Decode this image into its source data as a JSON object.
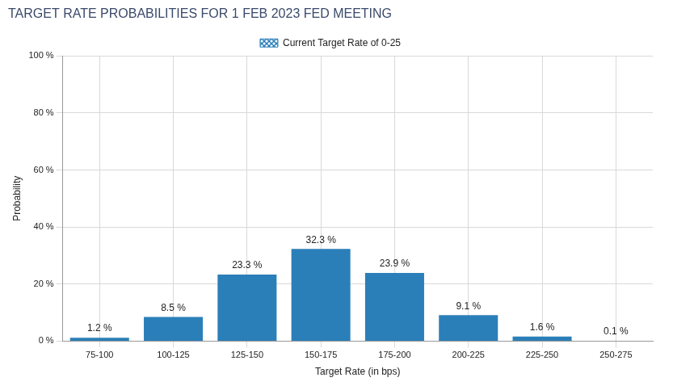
{
  "chart_data": {
    "type": "bar",
    "title": "TARGET RATE PROBABILITIES FOR 1 FEB 2023 FED MEETING",
    "x_label": "Target Rate (in bps)",
    "y_label": "Probability",
    "categories": [
      "75-100",
      "100-125",
      "125-150",
      "150-175",
      "175-200",
      "200-225",
      "225-250",
      "250-275"
    ],
    "series": [
      {
        "color": "#2b7fb8",
        "values": [
          1.2,
          8.5,
          23.3,
          32.3,
          23.9,
          9.1,
          1.6,
          0.1
        ],
        "value_labels": [
          "1.2 %",
          "8.5 %",
          "23.3 %",
          "32.3 %",
          "23.9 %",
          "9.1 %",
          "1.6 %",
          "0.1 %"
        ]
      },
      {
        "name": "Current Target Rate of 0-25",
        "color": "#2b7fb8",
        "marker": "hatch",
        "values": [
          null,
          null,
          null,
          null,
          null,
          null,
          null,
          null
        ]
      }
    ],
    "ylim": [
      0,
      100
    ],
    "yticks": [
      {
        "value": 0,
        "label": "0 %"
      },
      {
        "value": 20,
        "label": "20 %"
      },
      {
        "value": 40,
        "label": "40 %"
      },
      {
        "value": 60,
        "label": "60 %"
      },
      {
        "value": 80,
        "label": "80 %"
      },
      {
        "value": 100,
        "label": "100 %"
      }
    ],
    "grid": true,
    "legend": "top",
    "data_labels": true
  }
}
